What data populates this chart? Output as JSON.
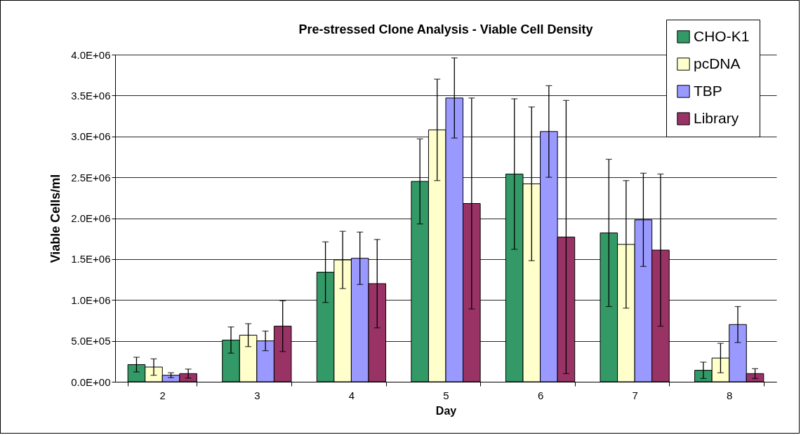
{
  "chart_data": {
    "type": "bar",
    "title": "Pre-stressed Clone Analysis - Viable Cell Density",
    "xlabel": "Day",
    "ylabel": "Viable Cells/ml",
    "categories": [
      "2",
      "3",
      "4",
      "5",
      "6",
      "7",
      "8"
    ],
    "series": [
      {
        "name": "CHO-K1",
        "color": "#339966",
        "values": [
          210000,
          510000,
          1340000,
          2450000,
          2540000,
          1820000,
          140000
        ],
        "errors": [
          90000,
          160000,
          370000,
          520000,
          920000,
          900000,
          100000
        ]
      },
      {
        "name": "pcDNA",
        "color": "#ffffcc",
        "values": [
          180000,
          570000,
          1490000,
          3080000,
          2420000,
          1680000,
          290000
        ],
        "errors": [
          100000,
          140000,
          350000,
          620000,
          940000,
          780000,
          180000
        ]
      },
      {
        "name": "TBP",
        "color": "#9999ff",
        "values": [
          80000,
          500000,
          1510000,
          3470000,
          3060000,
          1980000,
          700000
        ],
        "errors": [
          30000,
          120000,
          320000,
          490000,
          560000,
          570000,
          220000
        ]
      },
      {
        "name": "Library",
        "color": "#993366",
        "values": [
          100000,
          680000,
          1200000,
          2180000,
          1770000,
          1610000,
          100000
        ],
        "errors": [
          55000,
          310000,
          540000,
          1290000,
          1670000,
          930000,
          60000
        ]
      }
    ],
    "ylim": [
      0,
      4000000
    ],
    "yticks": [
      {
        "value": 0,
        "label": "0.0E+00"
      },
      {
        "value": 500000,
        "label": "5.0E+05"
      },
      {
        "value": 1000000,
        "label": "1.0E+06"
      },
      {
        "value": 1500000,
        "label": "1.5E+06"
      },
      {
        "value": 2000000,
        "label": "2.0E+06"
      },
      {
        "value": 2500000,
        "label": "2.5E+06"
      },
      {
        "value": 3000000,
        "label": "3.0E+06"
      },
      {
        "value": 3500000,
        "label": "3.5E+06"
      },
      {
        "value": 4000000,
        "label": "4.0E+06"
      }
    ],
    "grid": "y",
    "legend": "top right"
  }
}
